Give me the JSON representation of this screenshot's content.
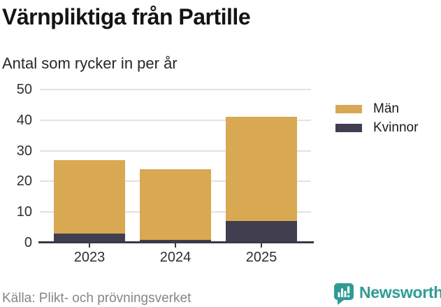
{
  "header": {
    "title": "Värnpliktiga från Partille",
    "subtitle": "Antal som rycker in per år"
  },
  "chart_data": {
    "type": "bar",
    "stacked": true,
    "categories": [
      "2023",
      "2024",
      "2025"
    ],
    "series": [
      {
        "name": "Män",
        "color": "#d9a853",
        "values": [
          24,
          23,
          34
        ]
      },
      {
        "name": "Kvinnor",
        "color": "#413e4f",
        "values": [
          3,
          1,
          7
        ]
      }
    ],
    "stack_totals": [
      27,
      24,
      41
    ],
    "ylim": [
      0,
      50
    ],
    "yticks": [
      0,
      10,
      20,
      30,
      40,
      50
    ],
    "grid": true,
    "legend_position": "right",
    "gridline_color": "#e2e2e2",
    "axis_color": "#3b3945"
  },
  "legend": {
    "items": [
      {
        "label": "Män",
        "color": "#d9a853"
      },
      {
        "label": "Kvinnor",
        "color": "#413e4f"
      }
    ]
  },
  "footer": {
    "source": "Källa: Plikt- och prövningsverket",
    "brand_name": "Newsworthy",
    "brand_color": "#2f9b95",
    "brand_icon": "bar-chart-speech-bubble-icon"
  }
}
